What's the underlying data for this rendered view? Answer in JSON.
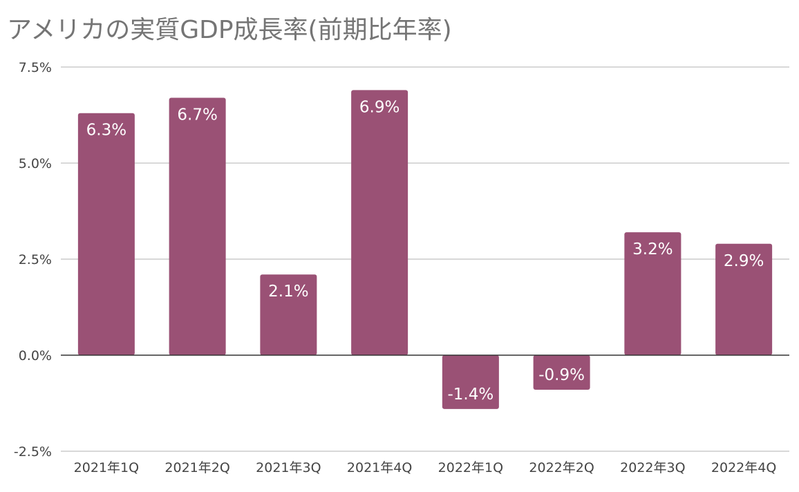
{
  "chart_data": {
    "type": "bar",
    "title": "アメリカの実質GDP成長率(前期比年率)",
    "xlabel": "",
    "ylabel": "",
    "categories": [
      "2021年1Q",
      "2021年2Q",
      "2021年3Q",
      "2021年4Q",
      "2022年1Q",
      "2022年2Q",
      "2022年3Q",
      "2022年4Q"
    ],
    "values": [
      6.3,
      6.7,
      2.1,
      6.9,
      -1.4,
      -0.9,
      3.2,
      2.9
    ],
    "data_labels": [
      "6.3%",
      "6.7%",
      "2.1%",
      "6.9%",
      "-1.4%",
      "-0.9%",
      "3.2%",
      "2.9%"
    ],
    "ylim": [
      -2.5,
      7.5
    ],
    "yticks": [
      7.5,
      5.0,
      2.5,
      0.0,
      -2.5
    ],
    "ytick_labels": [
      "7.5%",
      "5.0%",
      "2.5%",
      "0.0%",
      "-2.5%"
    ],
    "grid": true,
    "legend": "none",
    "bar_color": "#9a5175"
  }
}
